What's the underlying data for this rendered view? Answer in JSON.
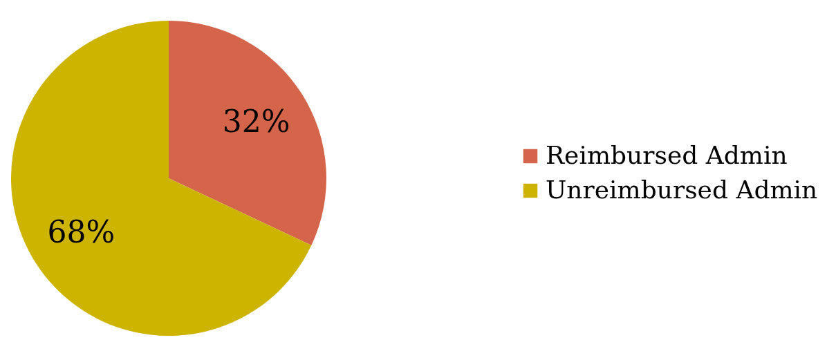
{
  "chart_data": {
    "type": "pie",
    "categories": [
      "Reimbursed Admin",
      "Unreimbursed Admin"
    ],
    "values": [
      32,
      68
    ],
    "colors": [
      "#d4654b",
      "#cdb400"
    ],
    "value_labels": [
      "32%",
      "68%"
    ],
    "legend": "right"
  }
}
